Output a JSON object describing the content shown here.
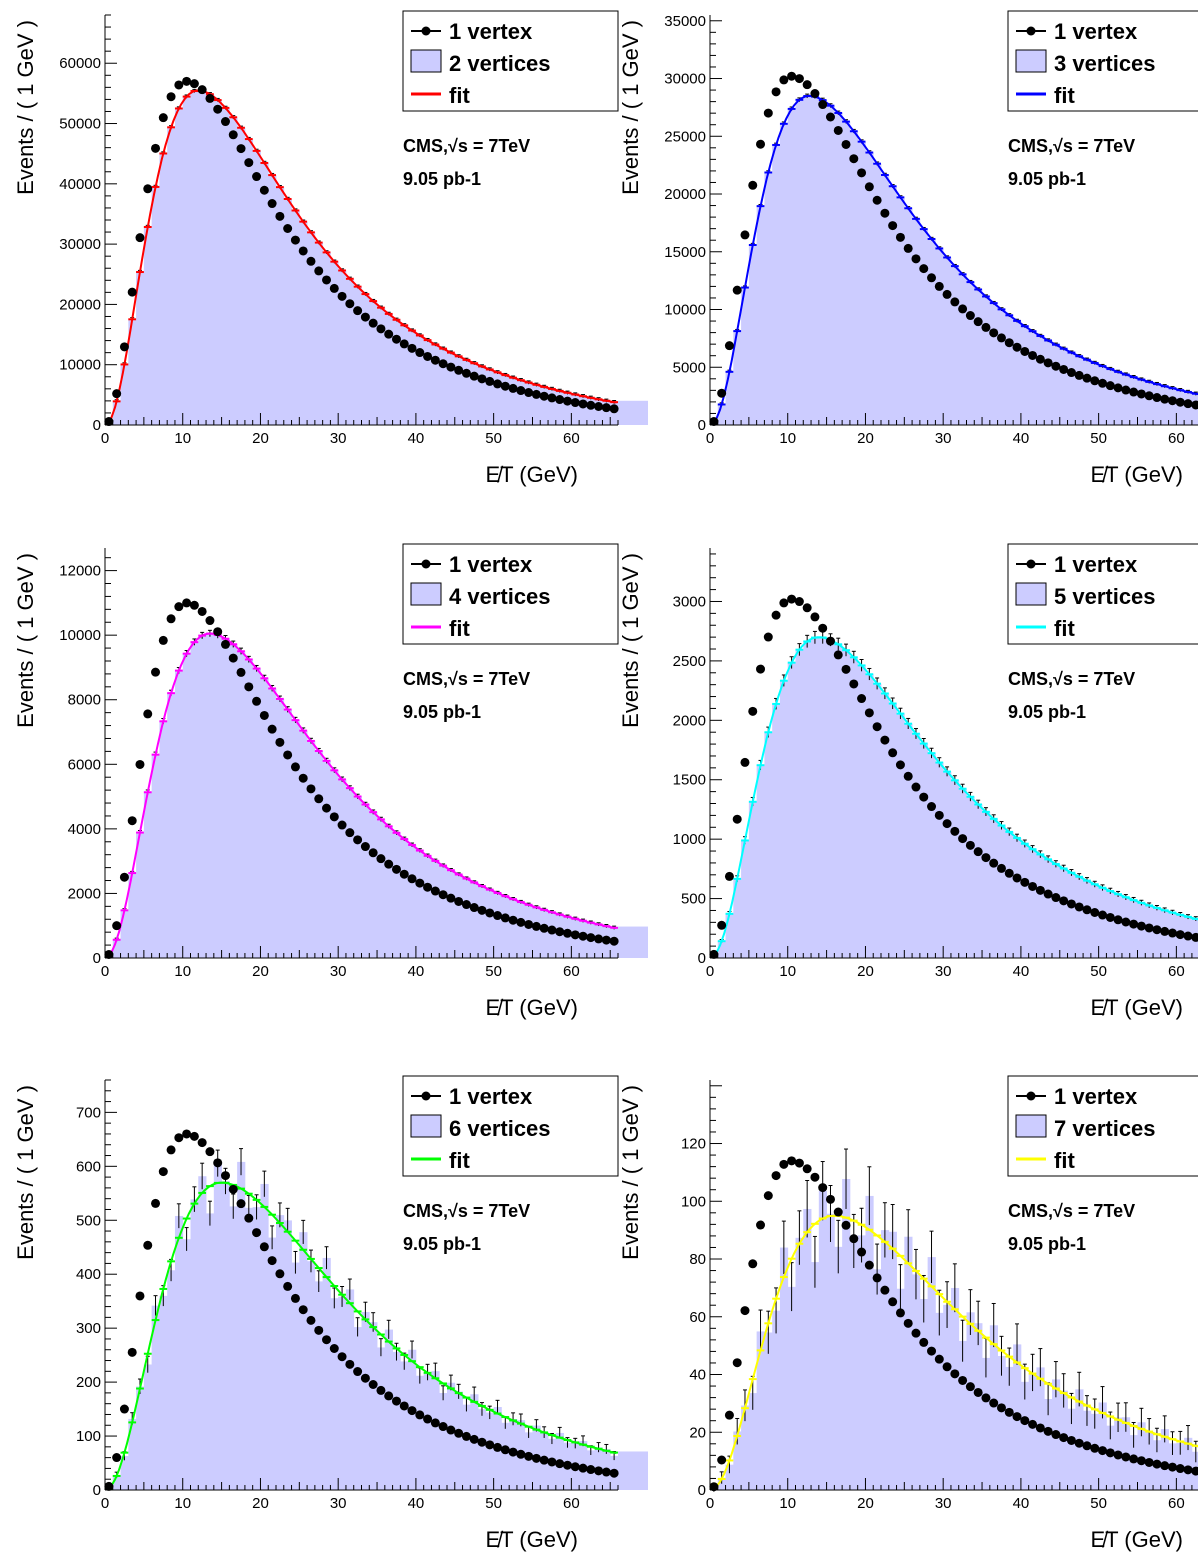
{
  "chart_data": [
    {
      "type": "bar",
      "title": "",
      "xlabel": "E̸T (GeV)",
      "ylabel": "Events / ( 1 GeV )",
      "xlim": [
        0,
        66
      ],
      "ylim": [
        0,
        68000
      ],
      "yticks": [
        0,
        10000,
        20000,
        30000,
        40000,
        50000,
        60000
      ],
      "xticks": [
        0,
        10,
        20,
        30,
        40,
        50,
        60
      ],
      "legend": {
        "position": "top-right",
        "entries": [
          "1 vertex",
          "2 vertices",
          "fit"
        ]
      },
      "annotations": [
        "CMS,√s = 7TeV",
        "9.05 pb-1"
      ],
      "fit_color": "#ff0000",
      "series": [
        {
          "name": "1 vertex",
          "peak_x": 10.5,
          "peak_y": 57000,
          "tail": 24
        },
        {
          "name": "2 vertices",
          "peak_x": 12.0,
          "peak_y": 55500,
          "tail": 26
        },
        {
          "name": "fit",
          "peak_x": 12.0,
          "peak_y": 55500,
          "tail": 26
        }
      ]
    },
    {
      "type": "bar",
      "title": "",
      "xlabel": "E̸T (GeV)",
      "ylabel": "Events / ( 1 GeV )",
      "xlim": [
        0,
        66
      ],
      "ylim": [
        0,
        35500
      ],
      "yticks": [
        0,
        5000,
        10000,
        15000,
        20000,
        25000,
        30000,
        35000
      ],
      "xticks": [
        0,
        10,
        20,
        30,
        40,
        50,
        60
      ],
      "legend": {
        "position": "top-right",
        "entries": [
          "1 vertex",
          "3 vertices",
          "fit"
        ]
      },
      "annotations": [
        "CMS,√s = 7TeV",
        "9.05 pb-1"
      ],
      "fit_color": "#0000ff",
      "series": [
        {
          "name": "1 vertex",
          "peak_x": 10.5,
          "peak_y": 30200,
          "tail": 24
        },
        {
          "name": "3 vertices",
          "peak_x": 12.8,
          "peak_y": 28500,
          "tail": 27
        },
        {
          "name": "fit",
          "peak_x": 12.8,
          "peak_y": 28500,
          "tail": 27
        }
      ]
    },
    {
      "type": "bar",
      "title": "",
      "xlabel": "E̸T (GeV)",
      "ylabel": "Events / ( 1 GeV )",
      "xlim": [
        0,
        66
      ],
      "ylim": [
        0,
        12700
      ],
      "yticks": [
        0,
        2000,
        4000,
        6000,
        8000,
        10000,
        12000
      ],
      "xticks": [
        0,
        10,
        20,
        30,
        40,
        50,
        60
      ],
      "legend": {
        "position": "top-right",
        "entries": [
          "1 vertex",
          "4 vertices",
          "fit"
        ]
      },
      "annotations": [
        "CMS,√s = 7TeV",
        "9.05 pb-1"
      ],
      "fit_color": "#ff00ff",
      "series": [
        {
          "name": "1 vertex",
          "peak_x": 10.5,
          "peak_y": 11000,
          "tail": 24
        },
        {
          "name": "4 vertices",
          "peak_x": 13.5,
          "peak_y": 10050,
          "tail": 28
        },
        {
          "name": "fit",
          "peak_x": 13.5,
          "peak_y": 10050,
          "tail": 28
        }
      ]
    },
    {
      "type": "bar",
      "title": "",
      "xlabel": "E̸T (GeV)",
      "ylabel": "Events / ( 1 GeV )",
      "xlim": [
        0,
        66
      ],
      "ylim": [
        0,
        3450
      ],
      "yticks": [
        0,
        500,
        1000,
        1500,
        2000,
        2500,
        3000
      ],
      "xticks": [
        0,
        10,
        20,
        30,
        40,
        50,
        60
      ],
      "legend": {
        "position": "top-right",
        "entries": [
          "1 vertex",
          "5 vertices",
          "fit"
        ]
      },
      "annotations": [
        "CMS,√s = 7TeV",
        "9.05 pb-1"
      ],
      "fit_color": "#00ffff",
      "series": [
        {
          "name": "1 vertex",
          "peak_x": 10.5,
          "peak_y": 3020,
          "tail": 24
        },
        {
          "name": "5 vertices",
          "peak_x": 14.0,
          "peak_y": 2700,
          "tail": 29
        },
        {
          "name": "fit",
          "peak_x": 14.0,
          "peak_y": 2700,
          "tail": 29
        }
      ]
    },
    {
      "type": "bar",
      "title": "",
      "xlabel": "E̸T (GeV)",
      "ylabel": "Events / ( 1 GeV )",
      "xlim": [
        0,
        66
      ],
      "ylim": [
        0,
        760
      ],
      "yticks": [
        0,
        100,
        200,
        300,
        400,
        500,
        600,
        700
      ],
      "xticks": [
        0,
        10,
        20,
        30,
        40,
        50,
        60
      ],
      "legend": {
        "position": "top-right",
        "entries": [
          "1 vertex",
          "6 vertices",
          "fit"
        ]
      },
      "annotations": [
        "CMS,√s = 7TeV",
        "9.05 pb-1"
      ],
      "fit_color": "#00ff00",
      "series": [
        {
          "name": "1 vertex",
          "peak_x": 10.5,
          "peak_y": 660,
          "tail": 24
        },
        {
          "name": "6 vertices",
          "peak_x": 15.0,
          "peak_y": 570,
          "tail": 30
        },
        {
          "name": "fit",
          "peak_x": 15.0,
          "peak_y": 570,
          "tail": 30
        }
      ]
    },
    {
      "type": "bar",
      "title": "",
      "xlabel": "E̸T (GeV)",
      "ylabel": "Events / ( 1 GeV )",
      "xlim": [
        0,
        66
      ],
      "ylim": [
        0,
        142
      ],
      "yticks": [
        0,
        20,
        40,
        60,
        80,
        100,
        120
      ],
      "xticks": [
        0,
        10,
        20,
        30,
        40,
        50,
        60
      ],
      "legend": {
        "position": "top-right",
        "entries": [
          "1 vertex",
          "7 vertices",
          "fit"
        ]
      },
      "annotations": [
        "CMS,√s = 7TeV",
        "9.05 pb-1"
      ],
      "fit_color": "#ffff00",
      "series": [
        {
          "name": "1 vertex",
          "peak_x": 10.5,
          "peak_y": 114,
          "tail": 24
        },
        {
          "name": "7 vertices",
          "peak_x": 16.0,
          "peak_y": 95,
          "tail": 31
        },
        {
          "name": "fit",
          "peak_x": 16.0,
          "peak_y": 95,
          "tail": 31
        }
      ]
    }
  ],
  "style": {
    "hist_fill": "#ccccff",
    "marker_color": "#000000"
  }
}
